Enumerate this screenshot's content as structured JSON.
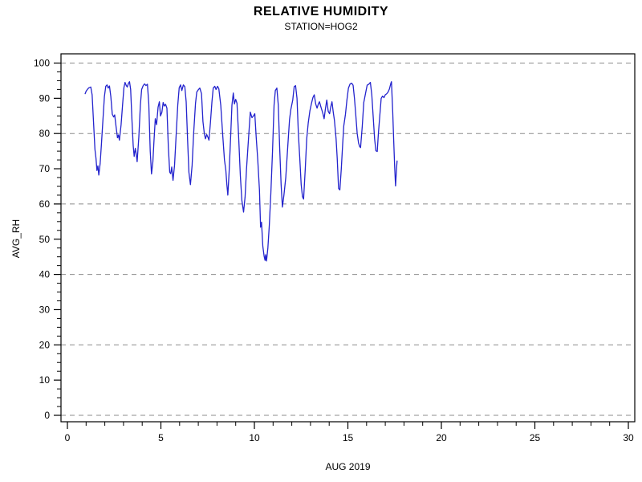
{
  "header": {
    "title": "RELATIVE HUMIDITY",
    "subtitle": "STATION=HOG2"
  },
  "chart_data": {
    "type": "line",
    "title": "RELATIVE HUMIDITY",
    "subtitle": "STATION=HOG2",
    "xlabel": "AUG 2019",
    "ylabel": "AVG_RH",
    "xlim": [
      0,
      30
    ],
    "ylim": [
      0,
      100
    ],
    "x_major_ticks": [
      0,
      5,
      10,
      15,
      20,
      25,
      30
    ],
    "x_minor_step": 1,
    "y_major_ticks": [
      0,
      10,
      20,
      30,
      40,
      50,
      60,
      70,
      80,
      90,
      100
    ],
    "y_minor_step": 2.5,
    "gridlines_y": [
      0,
      20,
      40,
      60,
      80,
      100
    ],
    "grid_style": "dashed",
    "legend_position": "none",
    "colors": {
      "line": "#2323cd",
      "grid": "#8c8c8c",
      "frame": "#000000",
      "background": "#ffffff"
    },
    "series": [
      {
        "name": "AVG_RH",
        "points": [
          [
            0.95,
            91.3
          ],
          [
            1.0,
            92.0
          ],
          [
            1.08,
            92.6
          ],
          [
            1.15,
            93.0
          ],
          [
            1.25,
            93.2
          ],
          [
            1.32,
            91.0
          ],
          [
            1.4,
            83.0
          ],
          [
            1.47,
            75.5
          ],
          [
            1.53,
            73.0
          ],
          [
            1.58,
            69.5
          ],
          [
            1.63,
            70.8
          ],
          [
            1.68,
            68.2
          ],
          [
            1.75,
            71.5
          ],
          [
            1.82,
            77.0
          ],
          [
            1.9,
            84.0
          ],
          [
            1.98,
            90.5
          ],
          [
            2.05,
            93.4
          ],
          [
            2.12,
            93.8
          ],
          [
            2.18,
            92.9
          ],
          [
            2.25,
            93.5
          ],
          [
            2.32,
            90.5
          ],
          [
            2.4,
            85.5
          ],
          [
            2.47,
            84.7
          ],
          [
            2.53,
            85.3
          ],
          [
            2.6,
            82.0
          ],
          [
            2.68,
            78.8
          ],
          [
            2.73,
            79.6
          ],
          [
            2.78,
            78.1
          ],
          [
            2.87,
            82.5
          ],
          [
            2.95,
            88.0
          ],
          [
            3.02,
            93.0
          ],
          [
            3.08,
            94.5
          ],
          [
            3.15,
            93.6
          ],
          [
            3.2,
            93.2
          ],
          [
            3.27,
            94.3
          ],
          [
            3.32,
            94.7
          ],
          [
            3.38,
            92.5
          ],
          [
            3.45,
            84.0
          ],
          [
            3.52,
            76.5
          ],
          [
            3.57,
            73.5
          ],
          [
            3.63,
            75.8
          ],
          [
            3.68,
            74.3
          ],
          [
            3.73,
            72.0
          ],
          [
            3.82,
            79.0
          ],
          [
            3.9,
            88.0
          ],
          [
            3.97,
            92.5
          ],
          [
            4.05,
            93.6
          ],
          [
            4.13,
            94.1
          ],
          [
            4.2,
            93.6
          ],
          [
            4.28,
            94.0
          ],
          [
            4.35,
            88.5
          ],
          [
            4.43,
            75.0
          ],
          [
            4.5,
            68.5
          ],
          [
            4.57,
            72.0
          ],
          [
            4.63,
            78.0
          ],
          [
            4.7,
            84.2
          ],
          [
            4.77,
            82.5
          ],
          [
            4.85,
            87.5
          ],
          [
            4.92,
            89.0
          ],
          [
            4.98,
            85.0
          ],
          [
            5.05,
            86.0
          ],
          [
            5.12,
            88.8
          ],
          [
            5.18,
            87.8
          ],
          [
            5.25,
            88.3
          ],
          [
            5.32,
            87.2
          ],
          [
            5.4,
            76.0
          ],
          [
            5.47,
            69.0
          ],
          [
            5.53,
            68.6
          ],
          [
            5.58,
            70.5
          ],
          [
            5.65,
            66.7
          ],
          [
            5.73,
            71.0
          ],
          [
            5.82,
            80.0
          ],
          [
            5.9,
            88.0
          ],
          [
            5.98,
            93.0
          ],
          [
            6.05,
            93.8
          ],
          [
            6.12,
            92.2
          ],
          [
            6.2,
            93.8
          ],
          [
            6.28,
            93.3
          ],
          [
            6.35,
            89.0
          ],
          [
            6.43,
            78.0
          ],
          [
            6.5,
            69.0
          ],
          [
            6.58,
            65.5
          ],
          [
            6.67,
            71.0
          ],
          [
            6.75,
            80.0
          ],
          [
            6.85,
            88.5
          ],
          [
            6.92,
            91.8
          ],
          [
            7.0,
            92.4
          ],
          [
            7.08,
            92.9
          ],
          [
            7.17,
            91.3
          ],
          [
            7.25,
            83.4
          ],
          [
            7.32,
            80.0
          ],
          [
            7.38,
            78.5
          ],
          [
            7.45,
            79.7
          ],
          [
            7.52,
            78.9
          ],
          [
            7.57,
            78.1
          ],
          [
            7.65,
            83.0
          ],
          [
            7.73,
            89.0
          ],
          [
            7.8,
            92.9
          ],
          [
            7.88,
            93.4
          ],
          [
            7.95,
            92.5
          ],
          [
            8.03,
            93.4
          ],
          [
            8.1,
            92.7
          ],
          [
            8.2,
            88.0
          ],
          [
            8.3,
            80.0
          ],
          [
            8.4,
            72.5
          ],
          [
            8.47,
            69.6
          ],
          [
            8.53,
            65.5
          ],
          [
            8.58,
            62.5
          ],
          [
            8.65,
            69.0
          ],
          [
            8.73,
            79.0
          ],
          [
            8.8,
            88.0
          ],
          [
            8.87,
            91.5
          ],
          [
            8.93,
            88.4
          ],
          [
            9.0,
            89.7
          ],
          [
            9.07,
            88.6
          ],
          [
            9.15,
            80.0
          ],
          [
            9.25,
            68.0
          ],
          [
            9.33,
            61.0
          ],
          [
            9.42,
            57.7
          ],
          [
            9.5,
            62.0
          ],
          [
            9.58,
            70.0
          ],
          [
            9.68,
            78.0
          ],
          [
            9.78,
            86.1
          ],
          [
            9.87,
            84.5
          ],
          [
            9.95,
            85.0
          ],
          [
            10.02,
            85.6
          ],
          [
            10.1,
            78.8
          ],
          [
            10.18,
            72.5
          ],
          [
            10.27,
            64.0
          ],
          [
            10.33,
            53.4
          ],
          [
            10.38,
            54.8
          ],
          [
            10.45,
            48.0
          ],
          [
            10.52,
            45.2
          ],
          [
            10.57,
            44.0
          ],
          [
            10.6,
            45.6
          ],
          [
            10.65,
            43.8
          ],
          [
            10.72,
            47.5
          ],
          [
            10.8,
            54.0
          ],
          [
            10.88,
            63.0
          ],
          [
            10.97,
            75.0
          ],
          [
            11.05,
            88.0
          ],
          [
            11.12,
            92.2
          ],
          [
            11.2,
            92.9
          ],
          [
            11.28,
            88.0
          ],
          [
            11.35,
            76.0
          ],
          [
            11.43,
            65.5
          ],
          [
            11.5,
            59.1
          ],
          [
            11.58,
            62.5
          ],
          [
            11.68,
            67.5
          ],
          [
            11.78,
            76.0
          ],
          [
            11.88,
            84.0
          ],
          [
            11.95,
            86.8
          ],
          [
            12.05,
            89.5
          ],
          [
            12.13,
            93.3
          ],
          [
            12.2,
            93.6
          ],
          [
            12.28,
            90.0
          ],
          [
            12.35,
            80.0
          ],
          [
            12.43,
            72.8
          ],
          [
            12.5,
            65.5
          ],
          [
            12.57,
            62.1
          ],
          [
            12.63,
            61.4
          ],
          [
            12.72,
            70.0
          ],
          [
            12.8,
            78.5
          ],
          [
            12.88,
            83.0
          ],
          [
            12.97,
            86.5
          ],
          [
            13.05,
            88.5
          ],
          [
            13.13,
            90.2
          ],
          [
            13.2,
            91.0
          ],
          [
            13.28,
            88.4
          ],
          [
            13.35,
            87.2
          ],
          [
            13.42,
            88.4
          ],
          [
            13.48,
            89.0
          ],
          [
            13.57,
            87.3
          ],
          [
            13.65,
            86.0
          ],
          [
            13.73,
            84.2
          ],
          [
            13.8,
            87.0
          ],
          [
            13.87,
            89.5
          ],
          [
            13.95,
            86.3
          ],
          [
            14.02,
            85.6
          ],
          [
            14.08,
            87.5
          ],
          [
            14.15,
            89.0
          ],
          [
            14.22,
            86.0
          ],
          [
            14.28,
            83.8
          ],
          [
            14.37,
            78.5
          ],
          [
            14.43,
            73.0
          ],
          [
            14.5,
            64.4
          ],
          [
            14.57,
            64.0
          ],
          [
            14.65,
            70.0
          ],
          [
            14.72,
            77.0
          ],
          [
            14.78,
            82.2
          ],
          [
            14.87,
            85.5
          ],
          [
            14.95,
            89.5
          ],
          [
            15.03,
            92.9
          ],
          [
            15.12,
            94.1
          ],
          [
            15.2,
            94.3
          ],
          [
            15.28,
            93.7
          ],
          [
            15.35,
            90.0
          ],
          [
            15.42,
            85.4
          ],
          [
            15.5,
            80.0
          ],
          [
            15.57,
            77.3
          ],
          [
            15.63,
            76.3
          ],
          [
            15.68,
            76.0
          ],
          [
            15.77,
            82.0
          ],
          [
            15.85,
            88.8
          ],
          [
            15.95,
            91.5
          ],
          [
            16.03,
            93.7
          ],
          [
            16.12,
            94.0
          ],
          [
            16.2,
            94.5
          ],
          [
            16.28,
            91.0
          ],
          [
            16.35,
            84.9
          ],
          [
            16.43,
            78.5
          ],
          [
            16.5,
            75.1
          ],
          [
            16.57,
            74.9
          ],
          [
            16.63,
            80.0
          ],
          [
            16.72,
            86.0
          ],
          [
            16.78,
            90.0
          ],
          [
            16.85,
            90.6
          ],
          [
            16.93,
            90.2
          ],
          [
            17.0,
            91.0
          ],
          [
            17.08,
            91.3
          ],
          [
            17.15,
            91.8
          ],
          [
            17.22,
            92.6
          ],
          [
            17.3,
            94.3
          ],
          [
            17.33,
            94.7
          ],
          [
            17.4,
            86.0
          ],
          [
            17.45,
            78.0
          ],
          [
            17.5,
            70.5
          ],
          [
            17.55,
            65.1
          ],
          [
            17.6,
            70.0
          ],
          [
            17.63,
            72.2
          ]
        ]
      }
    ]
  }
}
